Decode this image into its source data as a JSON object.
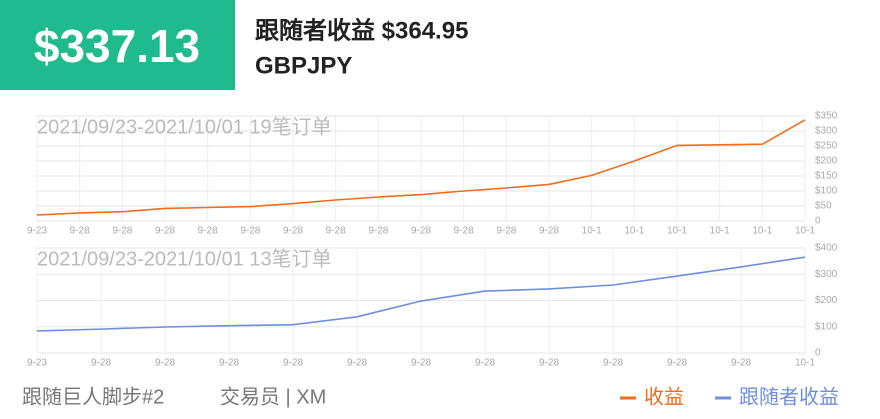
{
  "header": {
    "profit": "$337.13",
    "follower_profit": "跟随者收益 $364.95",
    "symbol": "GBPJPY"
  },
  "chart_data": [
    {
      "type": "line",
      "annotation": "2021/09/23-2021/10/01 19笔订单",
      "categories": [
        "9-23",
        "9-28",
        "9-28",
        "9-28",
        "9-28",
        "9-28",
        "9-28",
        "9-28",
        "9-28",
        "9-28",
        "9-28",
        "9-28",
        "9-28",
        "10-1",
        "10-1",
        "10-1",
        "10-1",
        "10-1",
        "10-1"
      ],
      "series": [
        {
          "name": "收益",
          "color": "#f26c1d",
          "values": [
            20,
            27,
            31,
            42,
            45,
            48,
            58,
            70,
            80,
            88,
            100,
            110,
            122,
            152,
            200,
            252,
            254,
            256,
            337
          ]
        }
      ],
      "ylim": [
        0,
        350
      ],
      "yticks": [
        0,
        {
          "value": 50,
          "label": "$50"
        },
        {
          "value": 100,
          "label": "$100"
        },
        {
          "value": 150,
          "label": "$150"
        },
        {
          "value": 200,
          "label": "$200"
        },
        {
          "value": 250,
          "label": "$250"
        },
        {
          "value": 300,
          "label": "$300"
        },
        {
          "value": 350,
          "label": "$350"
        }
      ],
      "grid": true
    },
    {
      "type": "line",
      "annotation": "2021/09/23-2021/10/01 13笔订单",
      "categories": [
        "9-23",
        "9-28",
        "9-28",
        "9-28",
        "9-28",
        "9-28",
        "9-28",
        "9-28",
        "9-28",
        "9-28",
        "9-28",
        "9-28",
        "10-1"
      ],
      "series": [
        {
          "name": "跟随者收益",
          "color": "#6f8fdc",
          "values": [
            84,
            91,
            99,
            104,
            108,
            138,
            198,
            236,
            244,
            259,
            293,
            328,
            365
          ]
        }
      ],
      "ylim": [
        0,
        400
      ],
      "yticks": [
        0,
        {
          "value": 100,
          "label": "$100"
        },
        {
          "value": 200,
          "label": "$200"
        },
        {
          "value": 300,
          "label": "$300"
        },
        {
          "value": 400,
          "label": "$400"
        }
      ],
      "grid": true
    }
  ],
  "footer": {
    "strategy": "跟随巨人脚步#2",
    "trader": "交易员 | XM"
  }
}
